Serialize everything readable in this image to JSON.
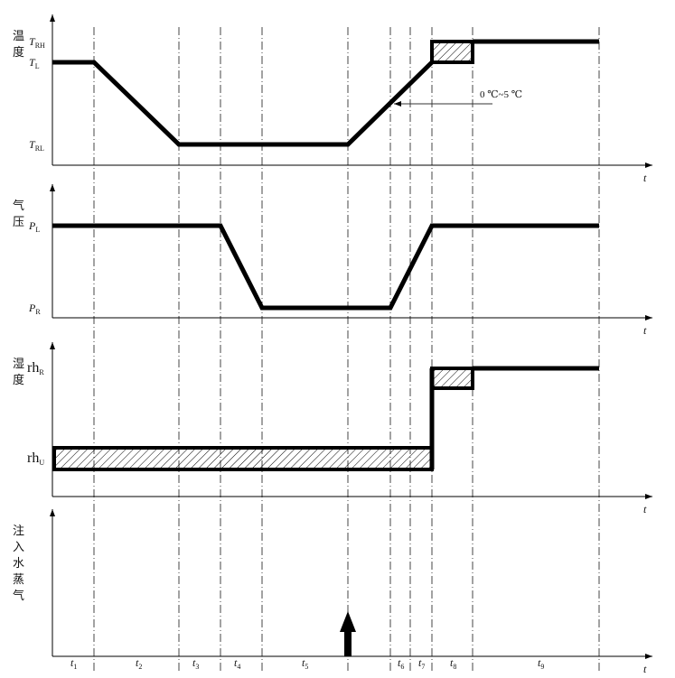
{
  "panels": [
    {
      "ylabel": [
        "温",
        "度"
      ],
      "levels": [
        {
          "main": "T",
          "sub": "RH",
          "italic": true
        },
        {
          "main": "T",
          "sub": "L",
          "italic": true
        },
        {
          "main": "T",
          "sub": "RL",
          "italic": true
        }
      ]
    },
    {
      "ylabel": [
        "气",
        "压"
      ],
      "levels": [
        {
          "main": "P",
          "sub": "L",
          "italic": true
        },
        {
          "main": "P",
          "sub": "R",
          "italic": true
        }
      ]
    },
    {
      "ylabel": [
        "湿",
        "度"
      ],
      "levels": [
        {
          "main": "rh",
          "sub": "R",
          "italic": false
        },
        {
          "main": "rh",
          "sub": "U",
          "italic": false
        }
      ]
    },
    {
      "ylabel": [
        "注",
        "入",
        "水",
        "蒸",
        "气"
      ],
      "levels": []
    }
  ],
  "axis_label": "t",
  "intervals": [
    {
      "main": "t",
      "sub": "1"
    },
    {
      "main": "t",
      "sub": "2"
    },
    {
      "main": "t",
      "sub": "3"
    },
    {
      "main": "t",
      "sub": "4"
    },
    {
      "main": "t",
      "sub": "5"
    },
    {
      "main": "t",
      "sub": "6"
    },
    {
      "main": "t",
      "sub": "7"
    },
    {
      "main": "t",
      "sub": "8"
    },
    {
      "main": "t",
      "sub": "9"
    }
  ],
  "annotation": "0 ℃~5 ℃",
  "colors": {
    "line": "#000000",
    "guide": "#555555"
  }
}
